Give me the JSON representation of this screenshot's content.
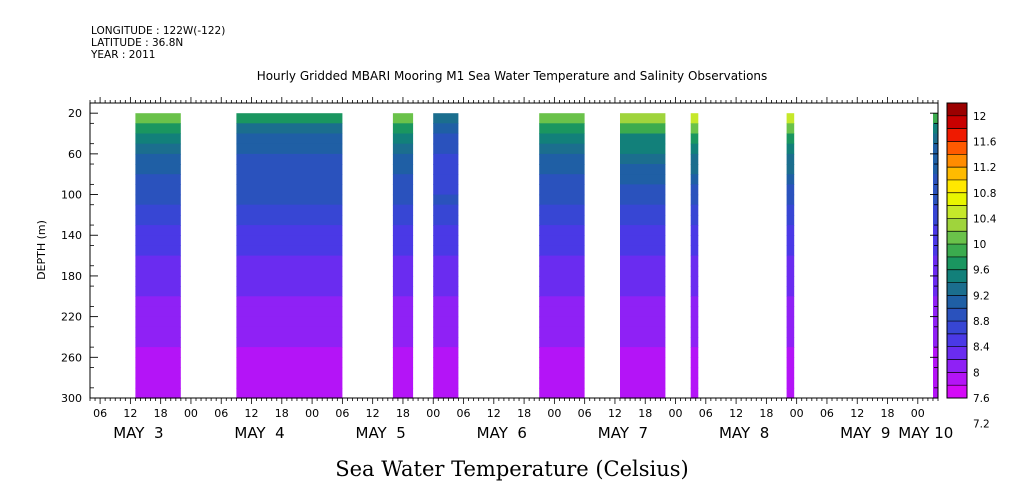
{
  "header": {
    "longitude": "LONGITUDE : 122W(-122)",
    "latitude": "LATITUDE : 36.8N",
    "year": "YEAR : 2011"
  },
  "chart_data": {
    "type": "heatmap",
    "title": "Hourly Gridded MBARI Mooring M1 Sea Water Temperature and Salinity Observations",
    "xlabel": "Sea Water Temperature (Celsius)",
    "ylabel": "DEPTH (m)",
    "y_range": [
      300,
      10
    ],
    "y_ticks": [
      20,
      60,
      100,
      140,
      180,
      220,
      260,
      300
    ],
    "x_range": [
      "2011-05-03T04:00",
      "2011-05-10T04:00"
    ],
    "x_hour_ticks": [
      "06",
      "12",
      "18",
      "00",
      "06",
      "12",
      "18",
      "00",
      "06",
      "12",
      "18",
      "00",
      "06",
      "12",
      "18",
      "00",
      "06",
      "12",
      "18",
      "00",
      "06",
      "12",
      "18",
      "00",
      "06",
      "12",
      "18",
      "00"
    ],
    "x_day_labels": [
      "MAY  3",
      "MAY  4",
      "MAY  5",
      "MAY  6",
      "MAY  7",
      "MAY  8",
      "MAY  9",
      "MAY 10"
    ],
    "colorbar": {
      "levels": [
        12,
        11.6,
        11.2,
        10.8,
        10.4,
        10,
        9.6,
        9.2,
        8.8,
        8.4,
        8,
        7.6,
        7.2
      ],
      "colors": [
        "#9b0000",
        "#c80000",
        "#ef1a00",
        "#ff5a00",
        "#ff8c00",
        "#ffbb00",
        "#ffe800",
        "#e8f500",
        "#c6e82a",
        "#9fd43c",
        "#6ac24a",
        "#3bab4e",
        "#1a9660",
        "#12807a",
        "#1b6e8e",
        "#1f5fa5",
        "#2a52bd",
        "#3746d4",
        "#4a39e6",
        "#6a2cf0",
        "#8f21f5",
        "#b414f7",
        "#d40af7"
      ]
    },
    "observation_segments_hours": [
      {
        "start": 9,
        "end": 18,
        "top_temp": 10.0
      },
      {
        "start": 29,
        "end": 50,
        "top_temp": 9.6
      },
      {
        "start": 60,
        "end": 64,
        "top_temp": 10.0
      },
      {
        "start": 68,
        "end": 73,
        "top_temp": 9.2
      },
      {
        "start": 89,
        "end": 98,
        "top_temp": 10.0
      },
      {
        "start": 105,
        "end": 114,
        "top_temp": 10.2
      },
      {
        "start": 119,
        "end": 120.5,
        "top_temp": 10.4
      },
      {
        "start": 138,
        "end": 139.5,
        "top_temp": 10.4
      },
      {
        "start": 167,
        "end": 168,
        "top_temp": 9.8
      }
    ],
    "depth_profile": [
      {
        "depth": 20,
        "temp": 10.0
      },
      {
        "depth": 40,
        "temp": 9.2
      },
      {
        "depth": 60,
        "temp": 8.9
      },
      {
        "depth": 80,
        "temp": 8.7
      },
      {
        "depth": 100,
        "temp": 8.5
      },
      {
        "depth": 120,
        "temp": 8.35
      },
      {
        "depth": 140,
        "temp": 8.2
      },
      {
        "depth": 160,
        "temp": 8.05
      },
      {
        "depth": 180,
        "temp": 7.95
      },
      {
        "depth": 200,
        "temp": 7.85
      },
      {
        "depth": 220,
        "temp": 7.75
      },
      {
        "depth": 240,
        "temp": 7.65
      },
      {
        "depth": 260,
        "temp": 7.55
      },
      {
        "depth": 280,
        "temp": 7.45
      },
      {
        "depth": 300,
        "temp": 7.4
      }
    ]
  }
}
